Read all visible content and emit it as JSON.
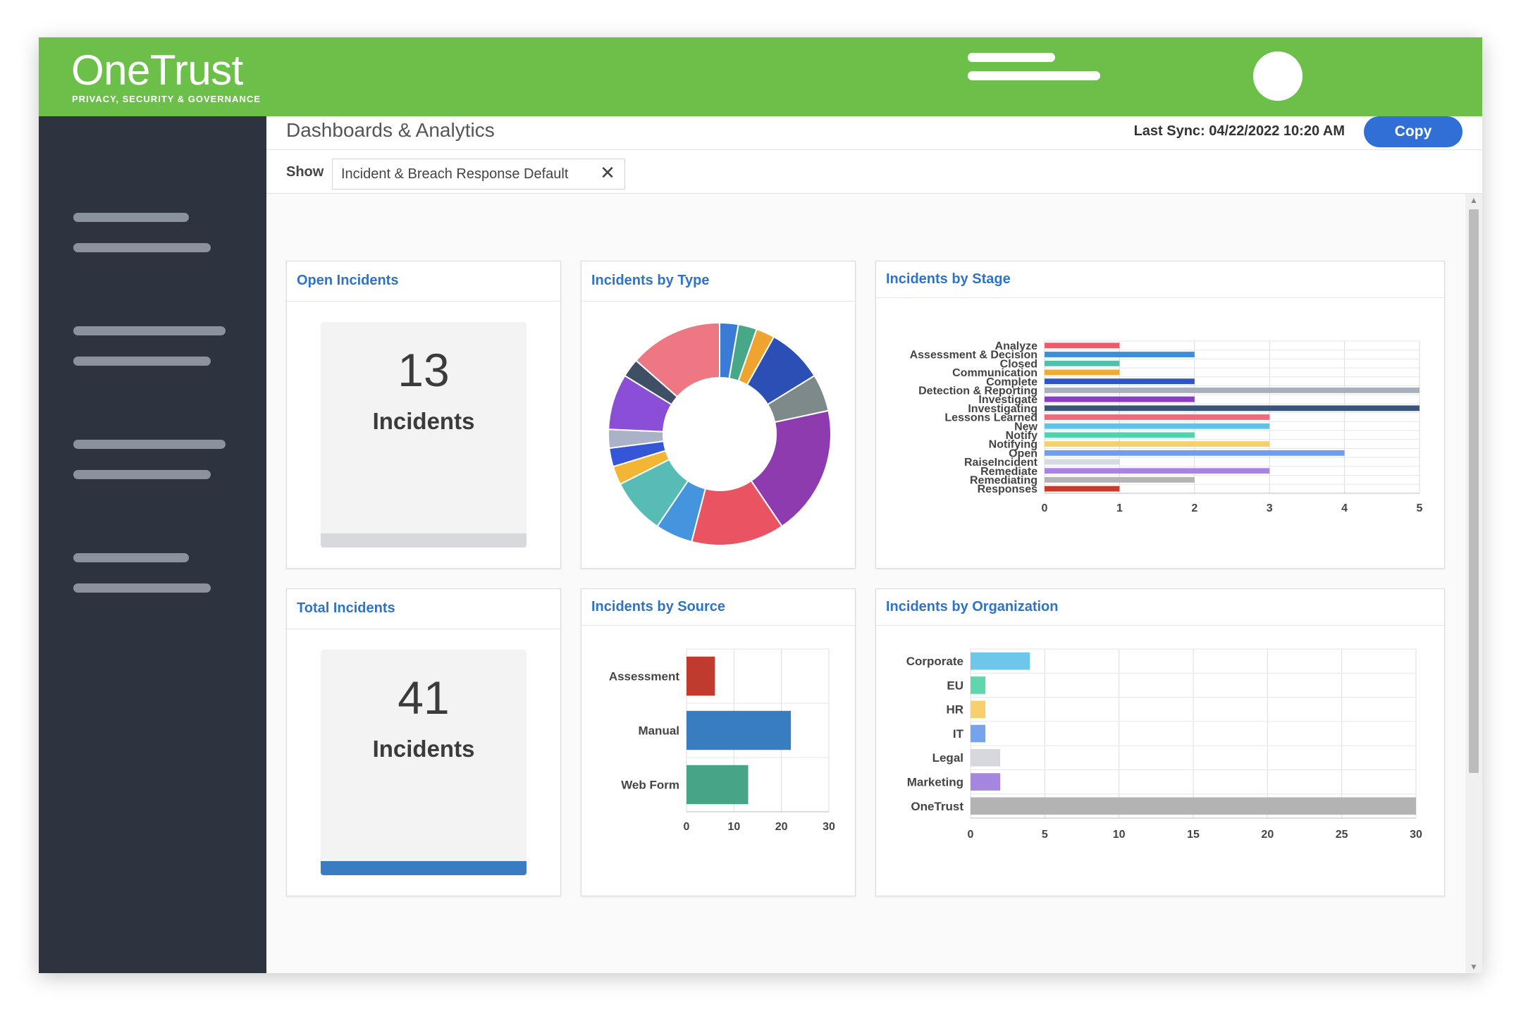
{
  "header": {
    "logo_title": "OneTrust",
    "logo_subtitle": "PRIVACY, SECURITY & GOVERNANCE",
    "brand_color": "#6cc04a"
  },
  "main": {
    "page_title": "Dashboards & Analytics",
    "last_sync": "Last Sync: 04/22/2022 10:20 AM",
    "copy_label": "Copy"
  },
  "filter": {
    "show_label": "Show",
    "value": "Incident & Breach Response Default",
    "clear_icon": "close-icon"
  },
  "kpis": {
    "open": {
      "title": "Open Incidents",
      "value": "13",
      "label": "Incidents",
      "bar_color": "#d7d9dd"
    },
    "total": {
      "title": "Total Incidents",
      "value": "41",
      "label": "Incidents",
      "bar_color": "#3a7cc2"
    }
  },
  "cards": {
    "type_title": "Incidents by Type",
    "stage_title": "Incidents by Stage",
    "source_title": "Incidents by Source",
    "org_title": "Incidents by Organization"
  },
  "chart_data": [
    {
      "id": "type",
      "type": "pie",
      "values": [
        1,
        1,
        1,
        3,
        2,
        7,
        5,
        2,
        3,
        1,
        1,
        1,
        3,
        1,
        5
      ],
      "colors": [
        "#3a7bd5",
        "#46a886",
        "#f0a430",
        "#2b4fb5",
        "#7e8a8a",
        "#8e3bb0",
        "#ea5362",
        "#4595de",
        "#57bdb4",
        "#f2b634",
        "#3557d7",
        "#a9b2c6",
        "#8b4ed6",
        "#3e4f66",
        "#ee7784"
      ]
    },
    {
      "id": "stage",
      "type": "bar",
      "orientation": "horizontal",
      "categories": [
        "Analyze",
        "Assessment & Decision",
        "Closed",
        "Communication",
        "Complete",
        "Detection & Reporting",
        "Investigate",
        "Investigating",
        "Lessons Learned",
        "New",
        "Notify",
        "Notifying",
        "Open",
        "RaiseIncident",
        "Remediate",
        "Remediating",
        "Responses"
      ],
      "values": [
        1,
        2,
        1,
        1,
        2,
        5,
        2,
        5,
        3,
        3,
        2,
        3,
        4,
        1,
        3,
        2,
        1
      ],
      "colors": [
        "#ee5a6a",
        "#3d8fdc",
        "#4fbfb2",
        "#f3ab2e",
        "#2f55c9",
        "#a8b0bd",
        "#8a3cc6",
        "#3b5479",
        "#ee6b7b",
        "#5bc4ec",
        "#51d4ae",
        "#f6d06a",
        "#6f9df0",
        "#d7dae0",
        "#a982e3",
        "#b4b4b4",
        "#c73a2e"
      ],
      "xticks": [
        "0",
        "1",
        "2",
        "3",
        "4",
        "5"
      ],
      "xlim": [
        0,
        5
      ]
    },
    {
      "id": "source",
      "type": "bar",
      "orientation": "horizontal",
      "categories": [
        "Assessment",
        "Manual",
        "Web Form"
      ],
      "values": [
        6,
        22,
        13
      ],
      "colors": [
        "#c03a2e",
        "#387dc0",
        "#48a487"
      ],
      "xticks": [
        "0",
        "10",
        "20",
        "30"
      ],
      "xlim": [
        0,
        30
      ]
    },
    {
      "id": "org",
      "type": "bar",
      "orientation": "horizontal",
      "categories": [
        "Corporate",
        "EU",
        "HR",
        "IT",
        "Legal",
        "Marketing",
        "OneTrust"
      ],
      "values": [
        4,
        1,
        1,
        1,
        2,
        2,
        30
      ],
      "colors": [
        "#6ec7eb",
        "#5fd6ae",
        "#f7d06d",
        "#76a3ee",
        "#d6d8de",
        "#a586e0",
        "#b3b3b3"
      ],
      "xticks": [
        "0",
        "5",
        "10",
        "15",
        "20",
        "25",
        "30"
      ],
      "xlim": [
        0,
        30
      ]
    }
  ]
}
